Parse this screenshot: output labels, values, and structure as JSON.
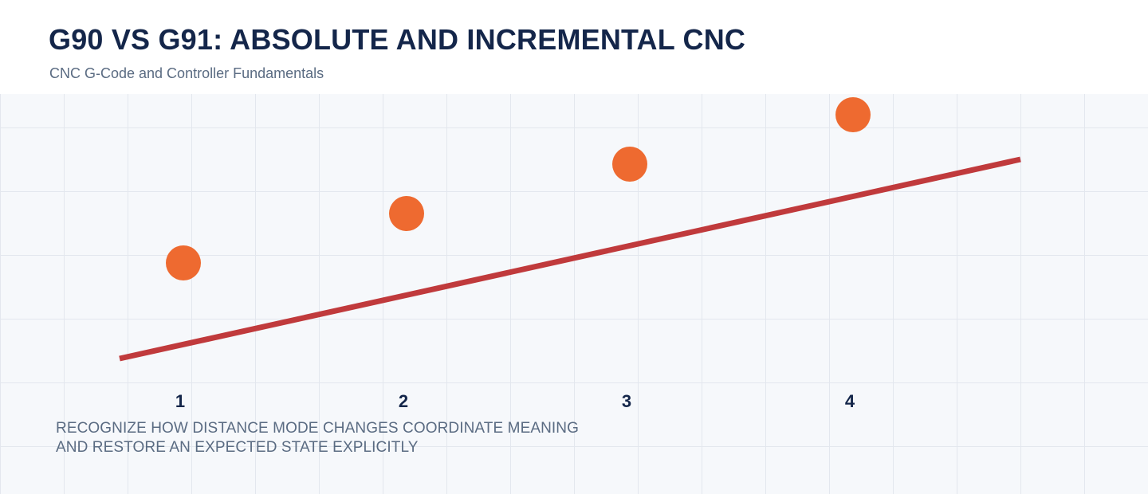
{
  "header": {
    "title": "G90 VS G91: ABSOLUTE AND INCREMENTAL CNC",
    "subtitle": "CNC G-Code and Controller Fundamentals"
  },
  "diagram": {
    "steps": [
      {
        "label": "1"
      },
      {
        "label": "2"
      },
      {
        "label": "3"
      },
      {
        "label": "4"
      }
    ],
    "colors": {
      "point": "#ee6a30",
      "trend_line": "#c03a3c",
      "grid": "#e3e7ee",
      "background": "#f6f8fb",
      "title": "#14264a",
      "muted_text": "#5a6b82"
    }
  },
  "caption": {
    "line1": "RECOGNIZE HOW DISTANCE MODE CHANGES COORDINATE MEANING",
    "line2": "AND RESTORE AN EXPECTED STATE EXPLICITLY"
  }
}
